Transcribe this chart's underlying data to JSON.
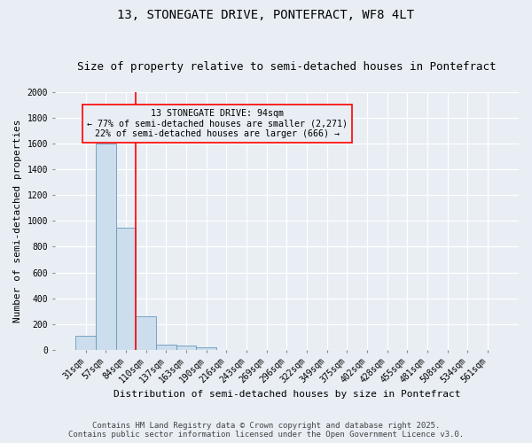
{
  "title1": "13, STONEGATE DRIVE, PONTEFRACT, WF8 4LT",
  "title2": "Size of property relative to semi-detached houses in Pontefract",
  "xlabel": "Distribution of semi-detached houses by size in Pontefract",
  "ylabel": "Number of semi-detached properties",
  "bar_labels": [
    "31sqm",
    "57sqm",
    "84sqm",
    "110sqm",
    "137sqm",
    "163sqm",
    "190sqm",
    "216sqm",
    "243sqm",
    "269sqm",
    "296sqm",
    "322sqm",
    "349sqm",
    "375sqm",
    "402sqm",
    "428sqm",
    "455sqm",
    "481sqm",
    "508sqm",
    "534sqm",
    "561sqm"
  ],
  "bar_values": [
    110,
    1600,
    950,
    260,
    40,
    30,
    20,
    0,
    0,
    0,
    0,
    0,
    0,
    0,
    0,
    0,
    0,
    0,
    0,
    0,
    0
  ],
  "bar_color": "#ccdded",
  "bar_edge_color": "#6699bb",
  "red_line_x": 2.5,
  "annotation_title": "13 STONEGATE DRIVE: 94sqm",
  "annotation_line1": "← 77% of semi-detached houses are smaller (2,271)",
  "annotation_line2": "22% of semi-detached houses are larger (666) →",
  "ylim": [
    0,
    2000
  ],
  "yticks": [
    0,
    200,
    400,
    600,
    800,
    1000,
    1200,
    1400,
    1600,
    1800,
    2000
  ],
  "footer1": "Contains HM Land Registry data © Crown copyright and database right 2025.",
  "footer2": "Contains public sector information licensed under the Open Government Licence v3.0.",
  "background_color": "#e8eef4",
  "grid_color": "#ffffff",
  "title1_fontsize": 10,
  "title2_fontsize": 9,
  "tick_fontsize": 7,
  "label_fontsize": 8,
  "footer_fontsize": 6.5
}
